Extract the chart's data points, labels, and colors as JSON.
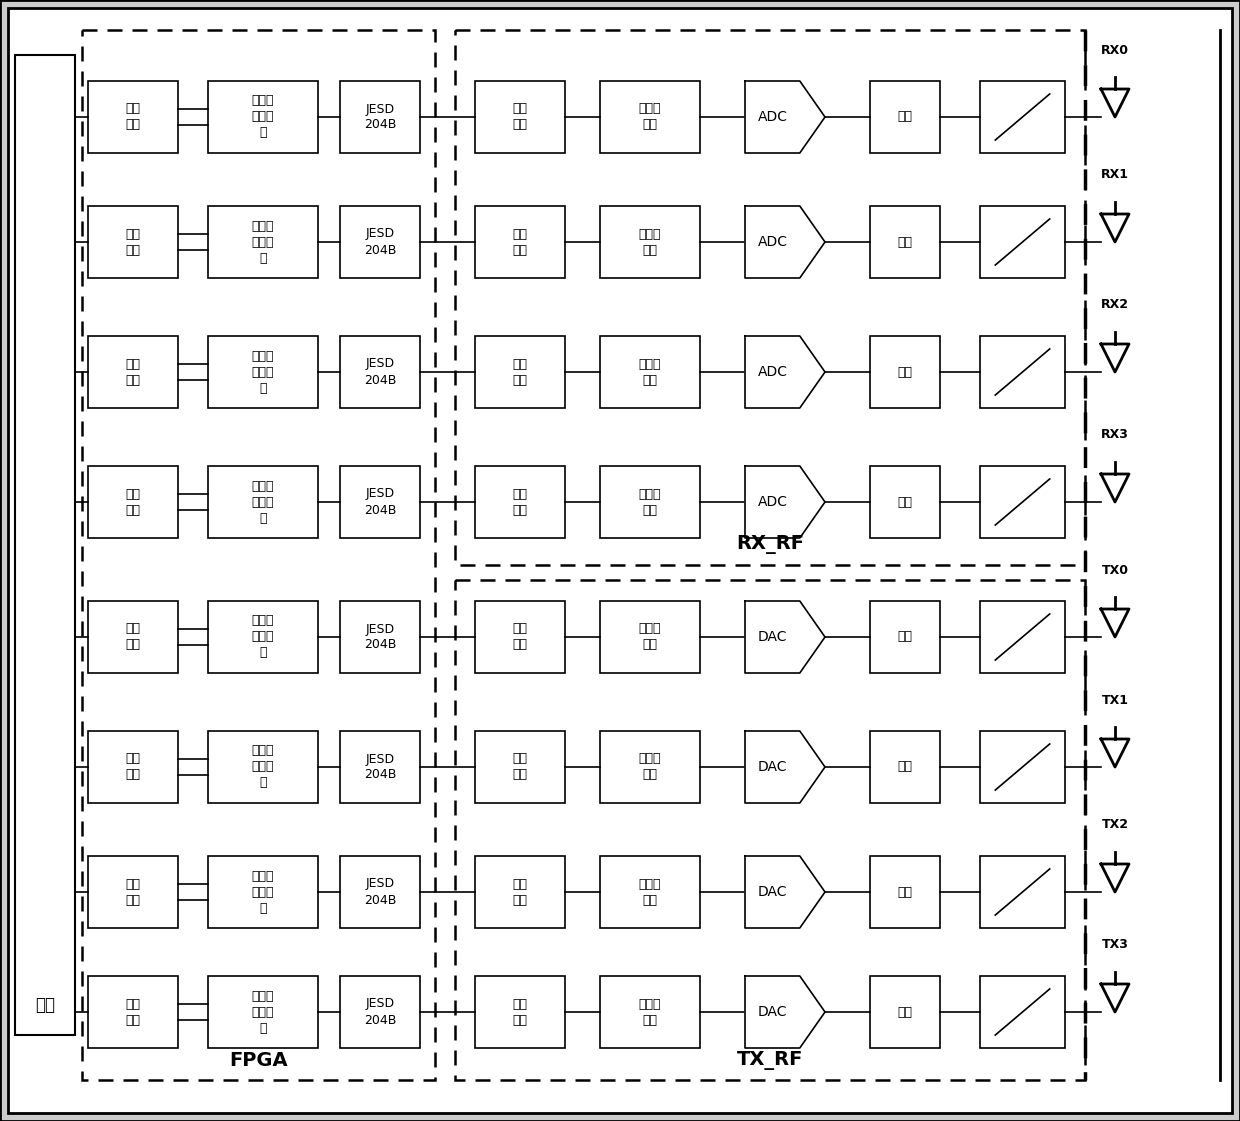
{
  "bg_color": "#ffffff",
  "outer_bg": "#d8d8d8",
  "box_color": "#ffffff",
  "box_edge": "#000000",
  "text_color": "#000000",
  "fiber_label": "光纤",
  "fpga_label": "FPGA",
  "rx_rf_label": "RX_RF",
  "tx_rf_label": "TX_RF",
  "label_guangxian": "光纤\n接口",
  "label_fenshushi": "分数时\n延滤波\n器",
  "label_jesd": "JESD\n204B",
  "label_chouqu": "抄取\n滤波",
  "label_xiabianpin": "数字下\n变频",
  "label_ADC": "ADC",
  "label_balun_rx": "巴他",
  "label_chazhi": "插値\n滤波",
  "label_shangbianpin": "数字上\n变频",
  "label_DAC": "DAC",
  "label_balun_tx": "巴他",
  "rx_labels": [
    "RX0",
    "RX1",
    "RX2",
    "RX3"
  ],
  "tx_labels": [
    "TX0",
    "TX1",
    "TX2",
    "TX3"
  ]
}
